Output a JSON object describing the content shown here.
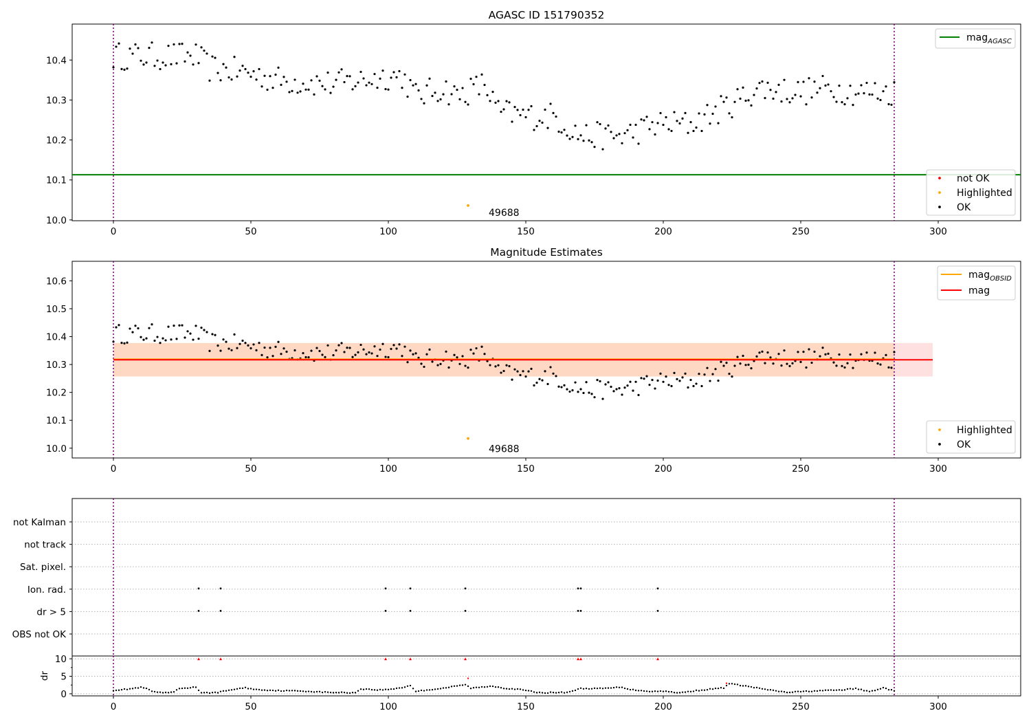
{
  "chart_data": [
    {
      "type": "scatter",
      "title": "AGASC ID 151790352",
      "xlim": [
        -15,
        330
      ],
      "ylim": [
        9.998,
        10.49
      ],
      "xticks": [
        0,
        50,
        100,
        150,
        200,
        250,
        300
      ],
      "yticks": [
        10.0,
        10.1,
        10.2,
        10.3,
        10.4
      ],
      "vlines": [
        0,
        284
      ],
      "hline": {
        "name": "mag_AGASC",
        "value": 10.113,
        "color": "#008000"
      },
      "highlight_point": {
        "x": 129,
        "y": 10.036,
        "label": "49688"
      },
      "legend_lines": [
        {
          "base": "mag",
          "sub": "AGASC",
          "color": "#008000"
        }
      ],
      "legend_points": [
        {
          "label": "not OK",
          "color": "#ff0000"
        },
        {
          "label": "Highlighted",
          "color": "#ffa500"
        },
        {
          "label": "OK",
          "color": "#000000"
        }
      ],
      "series": [
        {
          "name": "OK",
          "color": "#000000",
          "anchors": [
            [
              0,
              10.41
            ],
            [
              30,
              10.41
            ],
            [
              35,
              10.38
            ],
            [
              48,
              10.37
            ],
            [
              60,
              10.35
            ],
            [
              80,
              10.34
            ],
            [
              100,
              10.36
            ],
            [
              105,
              10.36
            ],
            [
              110,
              10.31
            ],
            [
              120,
              10.33
            ],
            [
              125,
              10.31
            ],
            [
              135,
              10.34
            ],
            [
              140,
              10.27
            ],
            [
              150,
              10.26
            ],
            [
              160,
              10.26
            ],
            [
              170,
              10.21
            ],
            [
              185,
              10.21
            ],
            [
              198,
              10.24
            ],
            [
              210,
              10.24
            ],
            [
              222,
              10.28
            ],
            [
              235,
              10.33
            ],
            [
              250,
              10.32
            ],
            [
              260,
              10.33
            ],
            [
              270,
              10.32
            ],
            [
              284,
              10.32
            ]
          ]
        }
      ]
    },
    {
      "type": "scatter",
      "title": "Magnitude Estimates",
      "xlim": [
        -15,
        330
      ],
      "ylim": [
        9.965,
        10.67
      ],
      "xticks": [
        0,
        50,
        100,
        150,
        200,
        250,
        300
      ],
      "yticks": [
        10.0,
        10.1,
        10.2,
        10.3,
        10.4,
        10.5,
        10.6
      ],
      "vlines": [
        0,
        284
      ],
      "bands": [
        {
          "name": "mag",
          "center": 10.317,
          "half_width": 0.06,
          "xrange": [
            0,
            298
          ],
          "color": "#ff0000",
          "opacity": 0.12
        },
        {
          "name": "mag_OBSID",
          "center": 10.317,
          "half_width": 0.06,
          "xrange": [
            0,
            284
          ],
          "color": "#ffa500",
          "opacity": 0.12
        }
      ],
      "lines": [
        {
          "name": "mag_OBSID",
          "value": 10.319,
          "xrange": [
            0,
            284
          ],
          "color": "#ffa500"
        },
        {
          "name": "mag",
          "value": 10.317,
          "xrange": [
            0,
            298
          ],
          "color": "#ff0000"
        }
      ],
      "highlight_point": {
        "x": 129,
        "y": 10.035,
        "label": "49688"
      },
      "legend_lines": [
        {
          "base": "mag",
          "sub": "OBSID",
          "color": "#ffa500"
        },
        {
          "base": "mag",
          "sub": "",
          "color": "#ff0000"
        }
      ],
      "legend_points": [
        {
          "label": "Highlighted",
          "color": "#ffa500"
        },
        {
          "label": "OK",
          "color": "#000000"
        }
      ],
      "series": [
        {
          "name": "OK",
          "color": "#000000",
          "anchors": [
            [
              0,
              10.41
            ],
            [
              30,
              10.41
            ],
            [
              35,
              10.38
            ],
            [
              48,
              10.37
            ],
            [
              60,
              10.35
            ],
            [
              80,
              10.34
            ],
            [
              100,
              10.36
            ],
            [
              105,
              10.36
            ],
            [
              110,
              10.31
            ],
            [
              120,
              10.33
            ],
            [
              125,
              10.31
            ],
            [
              135,
              10.34
            ],
            [
              140,
              10.27
            ],
            [
              150,
              10.26
            ],
            [
              160,
              10.26
            ],
            [
              170,
              10.21
            ],
            [
              185,
              10.21
            ],
            [
              198,
              10.24
            ],
            [
              210,
              10.24
            ],
            [
              222,
              10.28
            ],
            [
              235,
              10.33
            ],
            [
              250,
              10.32
            ],
            [
              260,
              10.33
            ],
            [
              270,
              10.32
            ],
            [
              284,
              10.32
            ]
          ]
        }
      ]
    },
    {
      "type": "scatter",
      "xlim": [
        -15,
        330
      ],
      "xticks": [
        0,
        50,
        100,
        150,
        200,
        250,
        300
      ],
      "vlines": [
        0,
        284
      ],
      "flag_rows": [
        "not Kalman",
        "not track",
        "Sat. pixel.",
        "Ion. rad.",
        "dr > 5",
        "OBS not OK"
      ],
      "flags": {
        "Ion. rad.": [
          31,
          39,
          99,
          108,
          128,
          169,
          170,
          198
        ],
        "dr > 5": [
          31,
          39,
          99,
          108,
          128,
          169,
          170,
          198
        ]
      }
    },
    {
      "type": "scatter",
      "xlim": [
        -15,
        330
      ],
      "ylim": [
        -0.6,
        10.8
      ],
      "ylabel": "dr",
      "xticks": [
        0,
        50,
        100,
        150,
        200,
        250,
        300
      ],
      "yticks": [
        0,
        5,
        10
      ],
      "vlines": [
        0,
        284
      ],
      "clipped_points": {
        "x": [
          31,
          39,
          99,
          108,
          128,
          169,
          170,
          198
        ],
        "y": 10,
        "color": "#ff0000"
      },
      "extra_points": [
        {
          "x": 129,
          "y": 4.4,
          "color": "#ff0000"
        },
        {
          "x": 223,
          "y": 3.0,
          "color": "#ff0000"
        }
      ],
      "series": [
        {
          "name": "dr",
          "color": "#000000",
          "anchors": [
            [
              0,
              1.0
            ],
            [
              5,
              1.3
            ],
            [
              10,
              1.8
            ],
            [
              12,
              1.5
            ],
            [
              14,
              0.7
            ],
            [
              18,
              0.2
            ],
            [
              22,
              0.5
            ],
            [
              24,
              1.5
            ],
            [
              30,
              1.9
            ],
            [
              32,
              0.2
            ],
            [
              38,
              0.4
            ],
            [
              44,
              1.3
            ],
            [
              48,
              1.7
            ],
            [
              52,
              1.2
            ],
            [
              60,
              0.9
            ],
            [
              68,
              0.8
            ],
            [
              78,
              0.4
            ],
            [
              88,
              0.3
            ],
            [
              90,
              1.4
            ],
            [
              96,
              1.1
            ],
            [
              100,
              1.2
            ],
            [
              106,
              1.9
            ],
            [
              108,
              2.4
            ],
            [
              110,
              0.7
            ],
            [
              120,
              1.6
            ],
            [
              128,
              2.6
            ],
            [
              130,
              1.6
            ],
            [
              138,
              2.2
            ],
            [
              142,
              1.6
            ],
            [
              148,
              1.2
            ],
            [
              155,
              0.3
            ],
            [
              165,
              0.4
            ],
            [
              170,
              1.5
            ],
            [
              178,
              1.5
            ],
            [
              185,
              1.9
            ],
            [
              188,
              1.2
            ],
            [
              195,
              0.7
            ],
            [
              202,
              0.7
            ],
            [
              205,
              0.2
            ],
            [
              212,
              0.9
            ],
            [
              222,
              1.7
            ],
            [
              224,
              2.9
            ],
            [
              230,
              2.2
            ],
            [
              240,
              0.9
            ],
            [
              245,
              0.4
            ],
            [
              255,
              0.8
            ],
            [
              265,
              1.1
            ],
            [
              270,
              1.5
            ],
            [
              275,
              0.6
            ],
            [
              280,
              1.7
            ],
            [
              284,
              0.8
            ]
          ]
        }
      ]
    }
  ]
}
